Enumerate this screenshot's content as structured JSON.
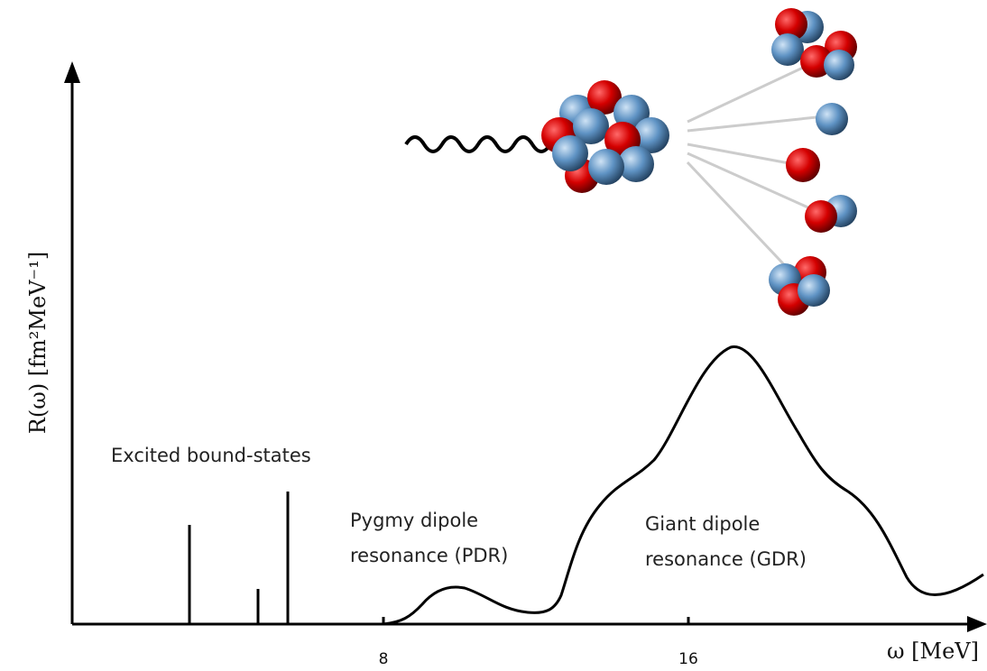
{
  "axes": {
    "y_label": "R(ω)  [fm²MeV⁻¹]",
    "x_label": "ω [MeV]",
    "x_ticks": [
      "8",
      "16"
    ]
  },
  "annotations": {
    "bound_states": "Excited bound-states",
    "pdr": [
      "Pygmy dipole",
      "resonance (PDR)"
    ],
    "gdr": [
      "Giant dipole",
      "resonance (GDR)"
    ]
  }
}
